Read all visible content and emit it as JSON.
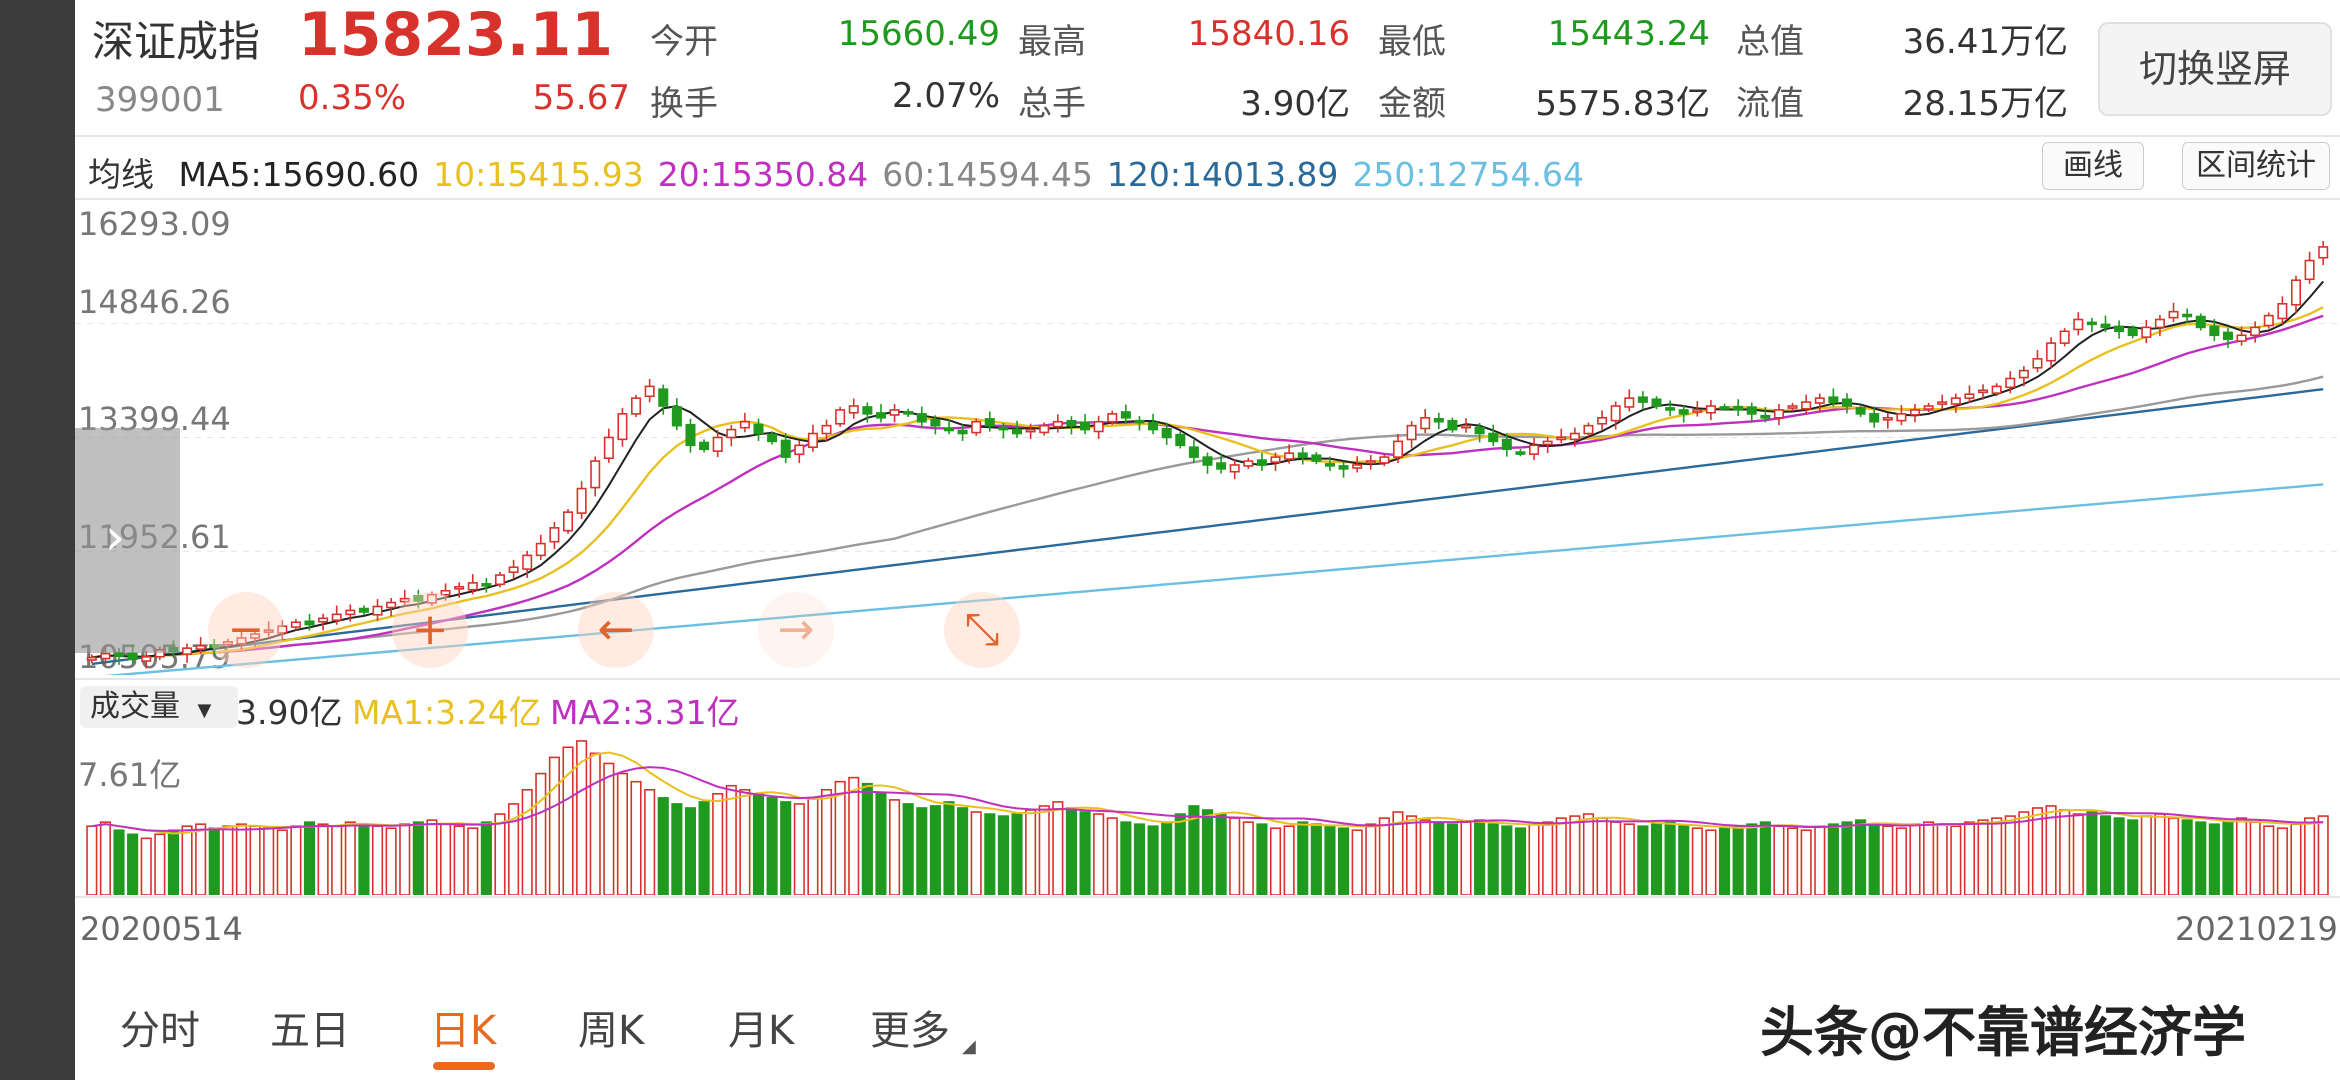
{
  "header": {
    "name": "深证成指",
    "code": "399001",
    "price": "15823.11",
    "change_pct": "0.35%",
    "change_val": "55.67",
    "stats": [
      {
        "label": "今开",
        "value": "15660.49",
        "color": "green"
      },
      {
        "label": "最高",
        "value": "15840.16",
        "color": "red"
      },
      {
        "label": "最低",
        "value": "15443.24",
        "color": "green"
      },
      {
        "label": "总值",
        "value": "36.41万亿",
        "color": "dark"
      },
      {
        "label": "换手",
        "value": "2.07%",
        "color": "dark"
      },
      {
        "label": "总手",
        "value": "3.90亿",
        "color": "dark"
      },
      {
        "label": "金额",
        "value": "5575.83亿",
        "color": "dark"
      },
      {
        "label": "流值",
        "value": "28.15万亿",
        "color": "dark"
      }
    ],
    "switch_label": "切换竖屏"
  },
  "ma_bar": {
    "label": "均线",
    "items": [
      {
        "text": "MA5:15690.60",
        "color": "#222222"
      },
      {
        "text": "10:15415.93",
        "color": "#e8c020"
      },
      {
        "text": "20:15350.84",
        "color": "#c030c0"
      },
      {
        "text": "60:14594.45",
        "color": "#888888"
      },
      {
        "text": "120:14013.89",
        "color": "#2a6a9a"
      },
      {
        "text": "250:12754.64",
        "color": "#6bbfe0"
      }
    ],
    "draw_btn": "画线",
    "stats_btn": "区间统计"
  },
  "price_axis": [
    "16293.09",
    "14846.26",
    "13399.44",
    "11952.61",
    "10505.79"
  ],
  "volume": {
    "selector": "成交量",
    "current": "3.90亿",
    "ma1": "MA1:3.24亿",
    "ma2": "MA2:3.31亿",
    "max_label": "7.61亿"
  },
  "date_start": "20200514",
  "date_end": "20210219",
  "controls": [
    "−",
    "+",
    "←",
    "→",
    "⤡"
  ],
  "tabs": [
    "分时",
    "五日",
    "日K",
    "周K",
    "月K",
    "更多"
  ],
  "active_tab": "日K",
  "watermark": "头条@不靠谱经济学",
  "colors": {
    "up": "#d7332c",
    "down": "#1f9a1f",
    "accent": "#e86a1e"
  },
  "chart_data": {
    "type": "candlestick",
    "x_start": "20200514",
    "x_end": "20210219",
    "ylim": [
      10505.79,
      16293.09
    ],
    "last_close": 15823.11,
    "moving_averages": {
      "MA5": 15690.6,
      "MA10": 15415.93,
      "MA20": 15350.84,
      "MA60": 14594.45,
      "MA120": 14013.89,
      "MA250": 12754.64
    },
    "closes": [
      10600,
      10650,
      10620,
      10580,
      10610,
      10700,
      10680,
      10720,
      10750,
      10730,
      10800,
      10850,
      10900,
      10950,
      11000,
      11050,
      11020,
      11100,
      11150,
      11200,
      11180,
      11250,
      11300,
      11350,
      11320,
      11400,
      11450,
      11500,
      11550,
      11520,
      11650,
      11750,
      11900,
      12050,
      12250,
      12450,
      12750,
      13100,
      13400,
      13700,
      13900,
      14050,
      13800,
      13550,
      13300,
      13250,
      13400,
      13500,
      13600,
      13450,
      13350,
      13150,
      13300,
      13450,
      13550,
      13750,
      13800,
      13700,
      13650,
      13750,
      13700,
      13600,
      13550,
      13500,
      13450,
      13600,
      13550,
      13500,
      13450,
      13500,
      13550,
      13600,
      13550,
      13500,
      13600,
      13700,
      13650,
      13600,
      13500,
      13400,
      13300,
      13150,
      13050,
      13000,
      13050,
      13100,
      13050,
      13150,
      13200,
      13150,
      13100,
      13050,
      13000,
      13050,
      13100,
      13150,
      13350,
      13550,
      13650,
      13600,
      13500,
      13550,
      13450,
      13350,
      13250,
      13200,
      13300,
      13350,
      13400,
      13450,
      13550,
      13650,
      13800,
      13900,
      13850,
      13800,
      13750,
      13700,
      13750,
      13800,
      13780,
      13750,
      13700,
      13650,
      13750,
      13800,
      13850,
      13900,
      13850,
      13800,
      13700,
      13600,
      13650,
      13700,
      13750,
      13800,
      13850,
      13900,
      13950,
      14000,
      14050,
      14150,
      14250,
      14400,
      14600,
      14750,
      14900,
      14850,
      14800,
      14750,
      14700,
      14800,
      14900,
      15000,
      14950,
      14800,
      14700,
      14650,
      14700,
      14800,
      14950,
      15100,
      15400,
      15650,
      15823.11
    ],
    "volume_ylim": [
      0,
      7.61
    ],
    "volume_unit": "亿",
    "volume": [
      3.4,
      3.6,
      3.2,
      3.0,
      2.8,
      3.0,
      3.2,
      3.4,
      3.5,
      3.3,
      3.4,
      3.5,
      3.4,
      3.3,
      3.2,
      3.4,
      3.6,
      3.5,
      3.4,
      3.6,
      3.5,
      3.4,
      3.3,
      3.5,
      3.6,
      3.7,
      3.5,
      3.4,
      3.3,
      3.6,
      4.0,
      4.5,
      5.2,
      6.0,
      6.8,
      7.3,
      7.61,
      7.0,
      6.5,
      6.0,
      5.6,
      5.2,
      4.8,
      4.5,
      4.3,
      4.6,
      5.0,
      5.4,
      5.2,
      5.0,
      4.8,
      4.6,
      4.5,
      4.8,
      5.2,
      5.6,
      5.8,
      5.5,
      5.0,
      4.7,
      4.5,
      4.3,
      4.4,
      4.6,
      4.3,
      4.1,
      4.0,
      3.9,
      4.0,
      4.2,
      4.4,
      4.6,
      4.3,
      4.1,
      4.0,
      3.8,
      3.6,
      3.5,
      3.4,
      3.6,
      4.0,
      4.4,
      4.2,
      4.0,
      3.8,
      3.6,
      3.5,
      3.3,
      3.4,
      3.6,
      3.5,
      3.4,
      3.3,
      3.2,
      3.5,
      3.8,
      4.1,
      3.9,
      3.7,
      3.6,
      3.5,
      3.6,
      3.7,
      3.5,
      3.4,
      3.3,
      3.5,
      3.6,
      3.8,
      3.9,
      4.0,
      3.8,
      3.6,
      3.5,
      3.4,
      3.5,
      3.6,
      3.4,
      3.3,
      3.2,
      3.3,
      3.4,
      3.5,
      3.6,
      3.4,
      3.3,
      3.2,
      3.4,
      3.5,
      3.6,
      3.7,
      3.5,
      3.4,
      3.3,
      3.5,
      3.6,
      3.5,
      3.4,
      3.6,
      3.7,
      3.8,
      3.9,
      4.1,
      4.3,
      4.4,
      4.2,
      4.0,
      4.1,
      3.9,
      3.8,
      3.7,
      3.9,
      4.0,
      3.8,
      3.7,
      3.6,
      3.5,
      3.6,
      3.8,
      3.6,
      3.4,
      3.3,
      3.5,
      3.8,
      3.9
    ]
  }
}
